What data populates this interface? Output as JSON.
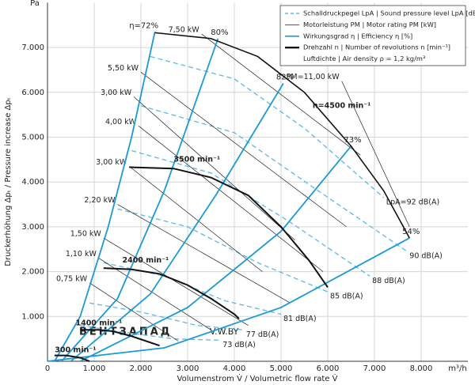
{
  "chart_data": {
    "type": "line",
    "y_unit": "Pa",
    "x_unit": "m³/h",
    "xlabel": "Volumenstrom V̇ / Volumetric flow rate V̇",
    "ylabel": "Druckerhöhung Δpₜ / Pressure increase Δpₜ",
    "xlim": [
      0,
      9000
    ],
    "ylim": [
      0,
      8000
    ],
    "xticks": [
      {
        "value": 0,
        "label": "0"
      },
      {
        "value": 1000,
        "label": "1.000"
      },
      {
        "value": 2000,
        "label": "2.000"
      },
      {
        "value": 3000,
        "label": "3.000"
      },
      {
        "value": 4000,
        "label": "4.000"
      },
      {
        "value": 5000,
        "label": "5.000"
      },
      {
        "value": 6000,
        "label": "6.000"
      },
      {
        "value": 7000,
        "label": "7.000"
      },
      {
        "value": 8000,
        "label": "8.000"
      }
    ],
    "yticks": [
      {
        "value": 1000,
        "label": "1.000"
      },
      {
        "value": 2000,
        "label": "2.000"
      },
      {
        "value": 3000,
        "label": "3.000"
      },
      {
        "value": 4000,
        "label": "4.000"
      },
      {
        "value": 5000,
        "label": "5.000"
      },
      {
        "value": 6000,
        "label": "6.000"
      },
      {
        "value": 7000,
        "label": "7.000"
      }
    ],
    "grid": true,
    "legend": [
      {
        "text": "Schalldruckpegel LpA | Sound pressure level LpA [dB(A)]",
        "color": "#5bb8e8",
        "style": "dashed"
      },
      {
        "text": "Motorleistung PM | Motor rating PM [kW]",
        "color": "#222222",
        "style": "thin"
      },
      {
        "text": "Wirkungsgrad η | Efficiency η [%]",
        "color": "#1a9ad6",
        "style": "solid"
      },
      {
        "text": "Drehzahl n | Number of revolutions n [min⁻¹]",
        "color": "#111111",
        "style": "thick"
      },
      {
        "text": "Luftdichte | Air density ρ = 1,2 kg/m³"
      }
    ],
    "speed_curves": {
      "color": "#111111",
      "series": [
        {
          "name": "n=4500 min⁻¹",
          "x": [
            2300,
            3500,
            4500,
            5500,
            6500,
            7200,
            7750
          ],
          "values": [
            7330,
            7200,
            6800,
            6000,
            4800,
            3800,
            2750
          ]
        },
        {
          "name": "3500 min⁻¹",
          "x": [
            1750,
            2700,
            3500,
            4300,
            5000,
            5600,
            6000
          ],
          "values": [
            4330,
            4300,
            4100,
            3700,
            3000,
            2250,
            1650
          ]
        },
        {
          "name": "2400 min⁻¹",
          "x": [
            1200,
            1800,
            2400,
            3000,
            3500,
            4000,
            4100
          ],
          "values": [
            2080,
            2050,
            1950,
            1700,
            1400,
            1050,
            950
          ]
        },
        {
          "name": "1400 min⁻¹",
          "x": [
            700,
            1100,
            1400,
            1800,
            2400
          ],
          "values": [
            700,
            700,
            670,
            560,
            350
          ]
        },
        {
          "name": "300 min⁻¹",
          "x": [
            150,
            400,
            700,
            900
          ],
          "values": [
            130,
            130,
            80,
            0
          ]
        }
      ]
    },
    "efficiency_lines": {
      "color": "#1a9ad6",
      "series": [
        {
          "name": "η=72%",
          "x": [
            150,
            700,
            1300,
            1800,
            2300
          ],
          "values": [
            0,
            1000,
            3000,
            5000,
            7350
          ]
        },
        {
          "name": "80%",
          "x": [
            300,
            1500,
            2500,
            3650
          ],
          "values": [
            0,
            1400,
            3800,
            7200
          ]
        },
        {
          "name": "82%",
          "x": [
            500,
            2200,
            3600,
            5050
          ],
          "values": [
            0,
            1500,
            3700,
            6200
          ]
        },
        {
          "name": "73%",
          "x": [
            700,
            3000,
            5000,
            6500
          ],
          "values": [
            0,
            1200,
            2900,
            4800
          ]
        },
        {
          "name": "54%",
          "x": [
            0,
            2500,
            5000,
            7750
          ],
          "values": [
            0,
            300,
            1200,
            2750
          ]
        }
      ]
    },
    "sound_lines": {
      "color": "#5bb8e8",
      "series": [
        {
          "name": "LpA=92 dB(A)",
          "x": [
            2200,
            4000,
            5500,
            7200
          ],
          "values": [
            6800,
            6300,
            5200,
            3650
          ]
        },
        {
          "name": "90 dB(A)",
          "x": [
            2000,
            4000,
            5800,
            7700
          ],
          "values": [
            5700,
            5100,
            3800,
            2450
          ]
        },
        {
          "name": "88 dB(A)",
          "x": [
            1800,
            3500,
            5200,
            6900
          ],
          "values": [
            4700,
            4200,
            3100,
            1900
          ]
        },
        {
          "name": "85 dB(A)",
          "x": [
            1500,
            3000,
            4500,
            6000
          ],
          "values": [
            3400,
            3000,
            2200,
            1550
          ]
        },
        {
          "name": "81 dB(A)",
          "x": [
            1200,
            2500,
            3800,
            5000
          ],
          "values": [
            2200,
            1900,
            1350,
            1050
          ]
        },
        {
          "name": "77 dB(A)",
          "x": [
            900,
            2000,
            3200,
            4200
          ],
          "values": [
            1300,
            1100,
            800,
            700
          ]
        },
        {
          "name": "73 dB(A)",
          "x": [
            700,
            1600,
            2700,
            3700
          ],
          "values": [
            800,
            650,
            500,
            470
          ]
        }
      ]
    },
    "power_lines": {
      "color": "#222222",
      "series": [
        {
          "name": "7,50 kW",
          "x": [
            3300,
            6700
          ],
          "values": [
            7300,
            4600
          ]
        },
        {
          "name": "PM=11,00 kW",
          "x": [
            6300,
            7750
          ],
          "values": [
            6250,
            3000
          ]
        },
        {
          "name": "5,50 kW",
          "x": [
            2000,
            6400
          ],
          "values": [
            6450,
            3000
          ]
        },
        {
          "name": "3,00 kW",
          "x": [
            1850,
            5300
          ],
          "values": [
            5900,
            2700
          ]
        },
        {
          "name": "4,00 kW",
          "x": [
            1950,
            5900
          ],
          "values": [
            5250,
            2000
          ]
        },
        {
          "name": "3,00 kW",
          "x": [
            1750,
            4600
          ],
          "values": [
            4350,
            2000
          ]
        },
        {
          "name": "2,20 kW",
          "x": [
            1500,
            5200
          ],
          "values": [
            3500,
            1300
          ]
        },
        {
          "name": "1,50 kW",
          "x": [
            1200,
            4300
          ],
          "values": [
            2750,
            800
          ]
        },
        {
          "name": "1,10 kW",
          "x": [
            1100,
            3500
          ],
          "values": [
            2300,
            700
          ]
        },
        {
          "name": "0,75 kW",
          "x": [
            900,
            2800
          ],
          "values": [
            1750,
            450
          ]
        }
      ]
    },
    "watermark": [
      "ВЕНТЗАПАД",
      "V.W.BY"
    ]
  }
}
